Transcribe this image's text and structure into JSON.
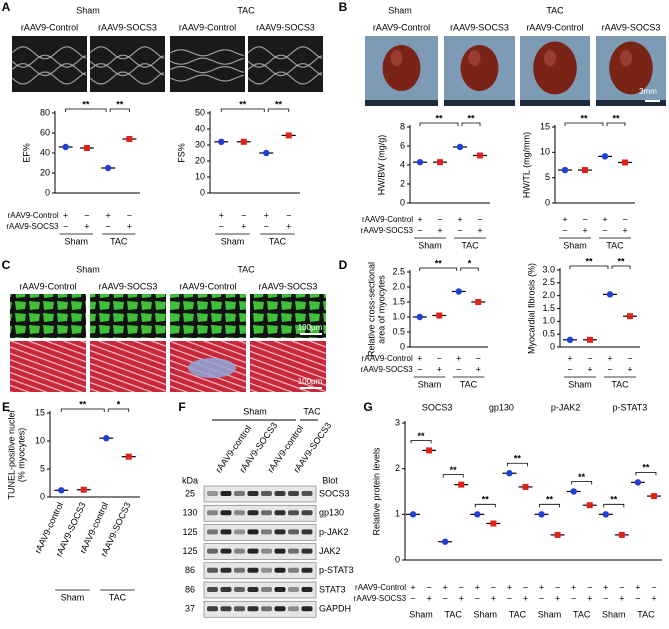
{
  "panel_A": {
    "letter": "A",
    "groups": [
      "Sham",
      "TAC"
    ],
    "labels": [
      "rAAV9-Control",
      "rAAV9-SOCS3",
      "rAAV9-Control",
      "rAAV9-SOCS3"
    ]
  },
  "panel_B": {
    "letter": "B",
    "groups": [
      "Sham",
      "TAC"
    ],
    "labels": [
      "rAAV9-Control",
      "rAAV9-SOCS3",
      "rAAV9-Control",
      "rAAV9-SOCS3"
    ],
    "scale": "3mm"
  },
  "panel_C": {
    "letter": "C",
    "groups": [
      "Sham",
      "TAC"
    ],
    "labels": [
      "rAAV9-Control",
      "rAAV9-SOCS3",
      "rAAV9-Control",
      "rAAV9-SOCS3"
    ],
    "scales": [
      "100μm",
      "100μm"
    ]
  },
  "panel_D": {
    "letter": "D"
  },
  "panel_E": {
    "letter": "E"
  },
  "panel_F": {
    "letter": "F",
    "groups": [
      "Sham",
      "TAC"
    ],
    "lanes": [
      "rAAV9-control",
      "rAAV9-SOCS3",
      "rAAV9-control",
      "rAAV9-SOCS3"
    ],
    "kda_header": "kDa",
    "blot_header": "Blot",
    "rows": [
      {
        "kda": 25,
        "name": "SOCS3"
      },
      {
        "kda": 130,
        "name": "gp130"
      },
      {
        "kda": 125,
        "name": "p-JAK2"
      },
      {
        "kda": 125,
        "name": "JAK2"
      },
      {
        "kda": 86,
        "name": "p-STAT3"
      },
      {
        "kda": 86,
        "name": "STAT3"
      },
      {
        "kda": 37,
        "name": "GAPDH"
      }
    ]
  },
  "panel_G": {
    "letter": "G"
  },
  "chart_data": [
    {
      "type": "dot",
      "ylabel": [
        "EF%"
      ],
      "ylim": [
        0,
        80
      ],
      "yticks": [
        0,
        20,
        40,
        60,
        80
      ],
      "values": [
        46,
        45,
        25,
        54
      ],
      "annotations": [
        "**",
        "**"
      ],
      "row_labels": [
        "rAAV9-Control",
        "rAAV9-SOCS3"
      ],
      "control_signs": [
        "+",
        "−",
        "+",
        "−"
      ],
      "socs3_signs": [
        "−",
        "+",
        "−",
        "+"
      ],
      "group_labels": [
        "Sham",
        "TAC"
      ],
      "colors": [
        "#1f3fd6",
        "#e0201b",
        "#1f3fd6",
        "#e0201b"
      ],
      "markers": [
        "circle",
        "square",
        "circle",
        "square"
      ]
    },
    {
      "type": "dot",
      "ylabel": [
        "FS%"
      ],
      "ylim": [
        0,
        50
      ],
      "yticks": [
        0,
        10,
        20,
        30,
        40,
        50
      ],
      "values": [
        32,
        32,
        25,
        36
      ],
      "annotations": [
        "**",
        "**"
      ],
      "control_signs": [
        "+",
        "−",
        "+",
        "−"
      ],
      "socs3_signs": [
        "−",
        "+",
        "−",
        "+"
      ],
      "group_labels": [
        "Sham",
        "TAC"
      ],
      "colors": [
        "#1f3fd6",
        "#e0201b",
        "#1f3fd6",
        "#e0201b"
      ],
      "markers": [
        "circle",
        "square",
        "circle",
        "square"
      ]
    },
    {
      "type": "dot",
      "ylabel": [
        "HW/BW (mg/g)"
      ],
      "ylim": [
        0,
        8
      ],
      "yticks": [
        0,
        2,
        4,
        6,
        8
      ],
      "values": [
        4.3,
        4.3,
        5.9,
        5.0
      ],
      "annotations": [
        "**",
        "**"
      ],
      "row_labels": [
        "rAAV9-Control",
        "rAAV9-SOCS3"
      ],
      "control_signs": [
        "+",
        "−",
        "+",
        "−"
      ],
      "socs3_signs": [
        "−",
        "+",
        "−",
        "+"
      ],
      "group_labels": [
        "Sham",
        "TAC"
      ],
      "colors": [
        "#1f3fd6",
        "#e0201b",
        "#1f3fd6",
        "#e0201b"
      ],
      "markers": [
        "circle",
        "square",
        "circle",
        "square"
      ]
    },
    {
      "type": "dot",
      "ylabel": [
        "HW/TL (mg/mm)"
      ],
      "ylim": [
        0,
        15
      ],
      "yticks": [
        0,
        5,
        10,
        15
      ],
      "values": [
        6.5,
        6.5,
        9.2,
        8.0
      ],
      "annotations": [
        "**",
        "**"
      ],
      "control_signs": [
        "+",
        "−",
        "+",
        "−"
      ],
      "socs3_signs": [
        "−",
        "+",
        "−",
        "+"
      ],
      "group_labels": [
        "Sham",
        "TAC"
      ],
      "colors": [
        "#1f3fd6",
        "#e0201b",
        "#1f3fd6",
        "#e0201b"
      ],
      "markers": [
        "circle",
        "square",
        "circle",
        "square"
      ]
    },
    {
      "type": "dot",
      "ylabel": [
        "Relative cross-sectional",
        "area of myocytes"
      ],
      "ylim": [
        0,
        2.5
      ],
      "yticks": [
        0,
        0.5,
        {
          "value": 1,
          "label": "1.0"
        },
        1.5,
        {
          "value": 2,
          "label": "2.0"
        },
        2.5
      ],
      "values": [
        1.0,
        1.05,
        1.85,
        1.5
      ],
      "annotations": [
        "**",
        "*"
      ],
      "row_labels": [
        "rAAV9-Control",
        "rAAV9-SOCS3"
      ],
      "control_signs": [
        "+",
        "−",
        "+",
        "−"
      ],
      "socs3_signs": [
        "−",
        "+",
        "−",
        "+"
      ],
      "group_labels": [
        "Sham",
        "TAC"
      ],
      "colors": [
        "#1f3fd6",
        "#e0201b",
        "#1f3fd6",
        "#e0201b"
      ],
      "markers": [
        "circle",
        "square",
        "circle",
        "square"
      ]
    },
    {
      "type": "dot",
      "ylabel": [
        "Myocardial fibrosis (%)"
      ],
      "ylim": [
        0,
        3
      ],
      "yticks": [
        0,
        0.5,
        {
          "value": 1,
          "label": "1.0"
        },
        1.5,
        {
          "value": 2,
          "label": "2.0"
        },
        2.5,
        {
          "value": 3,
          "label": "3.0"
        }
      ],
      "values": [
        0.28,
        0.28,
        2.05,
        1.2
      ],
      "annotations": [
        "**",
        "**"
      ],
      "control_signs": [
        "+",
        "−",
        "+",
        "−"
      ],
      "socs3_signs": [
        "−",
        "+",
        "−",
        "+"
      ],
      "group_labels": [
        "Sham",
        "TAC"
      ],
      "colors": [
        "#1f3fd6",
        "#e0201b",
        "#1f3fd6",
        "#e0201b"
      ],
      "markers": [
        "circle",
        "square",
        "circle",
        "square"
      ]
    },
    {
      "type": "dot",
      "ylabel": [
        "TUNEL-positive nuclei",
        "(% myocytes)"
      ],
      "ylim": [
        0,
        15
      ],
      "yticks": [
        0,
        5,
        10,
        15
      ],
      "categories": [
        "rAAV9-control",
        "rAAV9-SOCS3",
        "rAAV9-control",
        "rAAV9-SOCS3"
      ],
      "values": [
        1.2,
        1.3,
        10.5,
        7.2
      ],
      "annotations": [
        "**",
        "*"
      ],
      "group_labels": [
        "Sham",
        "TAC"
      ],
      "colors": [
        "#1f3fd6",
        "#e0201b",
        "#1f3fd6",
        "#e0201b"
      ],
      "markers": [
        "circle",
        "square",
        "circle",
        "square"
      ]
    },
    {
      "type": "dot_groups",
      "ylabel": [
        "Relative protein levels"
      ],
      "ylim": [
        0,
        3
      ],
      "yticks": [
        0,
        1,
        2,
        3
      ],
      "subtitles": [
        "SOCS3",
        "gp130",
        "p-JAK2",
        "p-STAT3"
      ],
      "values": [
        [
          1.0,
          2.4,
          0.4,
          1.65
        ],
        [
          1.0,
          0.8,
          1.9,
          1.6
        ],
        [
          1.0,
          0.55,
          1.5,
          1.2
        ],
        [
          1.0,
          0.55,
          1.7,
          1.4
        ]
      ],
      "annotations": [
        [
          "**",
          "**"
        ],
        [
          "**",
          "**"
        ],
        [
          "**",
          "**"
        ],
        [
          "**",
          "**"
        ]
      ],
      "row_labels": [
        "rAAV9-Control",
        "rAAV9-SOCS3"
      ],
      "control_signs": [
        "+",
        "−",
        "+",
        "−"
      ],
      "socs3_signs": [
        "−",
        "+",
        "−",
        "+"
      ],
      "group_labels": [
        "Sham",
        "TAC"
      ],
      "colors": [
        "#1f3fd6",
        "#e0201b",
        "#1f3fd6",
        "#e0201b"
      ],
      "markers": [
        "circle",
        "square",
        "circle",
        "square"
      ]
    }
  ]
}
